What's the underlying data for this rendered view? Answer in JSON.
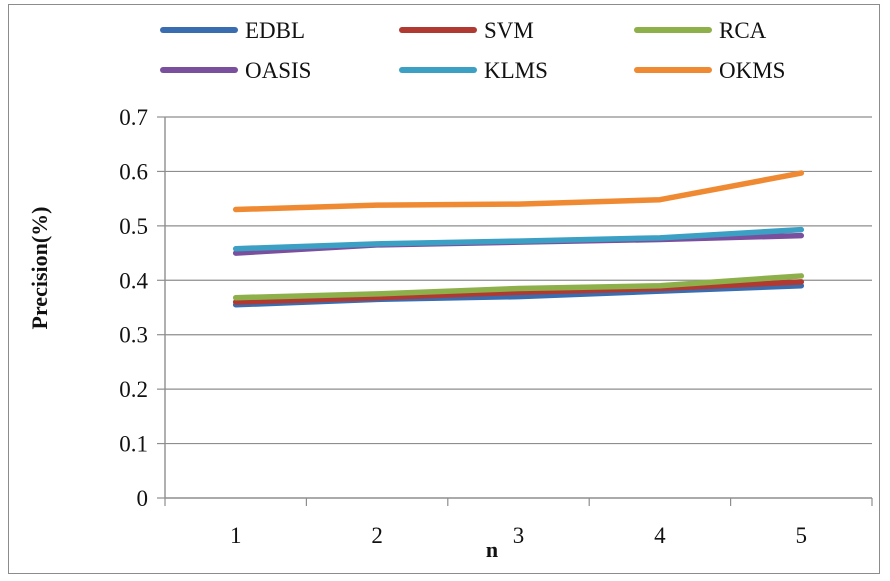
{
  "chart_data": {
    "type": "line",
    "title": "",
    "xlabel": "n",
    "ylabel": "Precision(%)",
    "categories": [
      "1",
      "2",
      "3",
      "4",
      "5"
    ],
    "ylim": [
      0,
      0.7
    ],
    "yticks": [
      "0",
      "0.1",
      "0.2",
      "0.3",
      "0.4",
      "0.5",
      "0.6",
      "0.7"
    ],
    "grid": "horizontal",
    "legend_position": "top",
    "series": [
      {
        "name": "EDBL",
        "color": "#3a6cb0",
        "values": [
          0.355,
          0.365,
          0.37,
          0.38,
          0.39
        ]
      },
      {
        "name": "SVM",
        "color": "#b03a32",
        "values": [
          0.36,
          0.368,
          0.378,
          0.385,
          0.397
        ]
      },
      {
        "name": "RCA",
        "color": "#8db04a",
        "values": [
          0.368,
          0.375,
          0.385,
          0.39,
          0.408
        ]
      },
      {
        "name": "OASIS",
        "color": "#7a4f9e",
        "values": [
          0.45,
          0.465,
          0.47,
          0.475,
          0.482
        ]
      },
      {
        "name": "KLMS",
        "color": "#3ba0c4",
        "values": [
          0.458,
          0.467,
          0.472,
          0.478,
          0.493
        ]
      },
      {
        "name": "OKMS",
        "color": "#ef8a33",
        "values": [
          0.53,
          0.538,
          0.54,
          0.548,
          0.597
        ]
      }
    ]
  }
}
